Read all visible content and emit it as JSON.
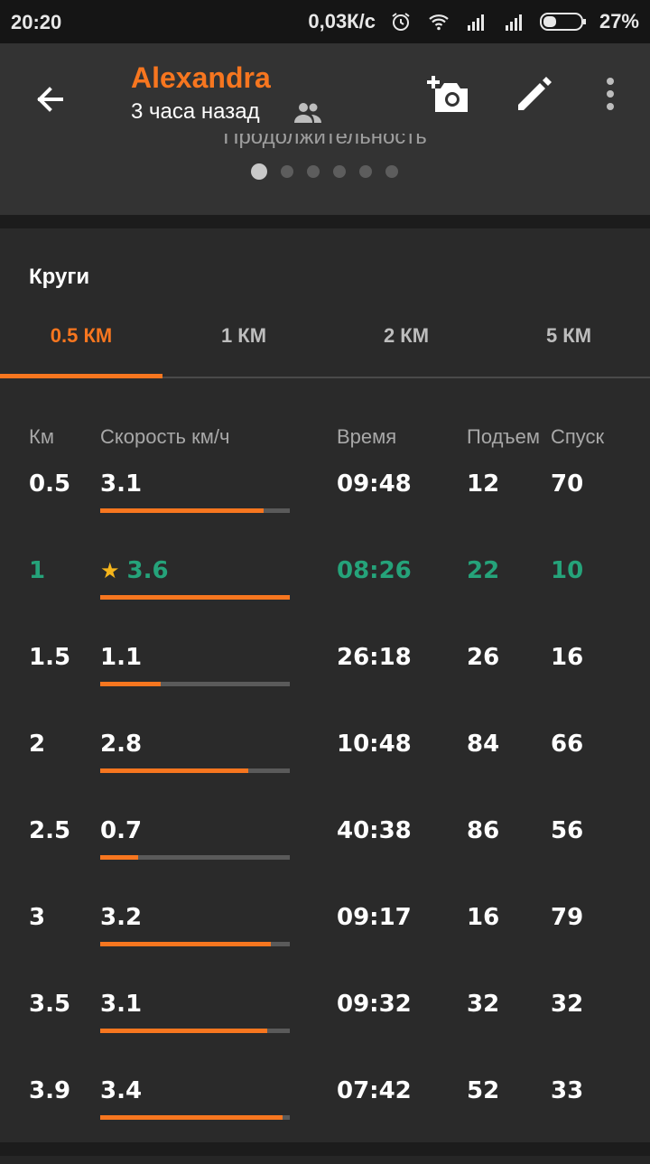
{
  "status_bar": {
    "time": "20:20",
    "speed": "0,03К/с",
    "battery": "27%",
    "icons": [
      "alarm-icon",
      "wifi-icon",
      "signal-icon",
      "signal-icon",
      "battery-icon"
    ]
  },
  "header": {
    "name": "Alexandra",
    "subtitle": "3 часа назад",
    "clipped_label": "Продолжительность",
    "carousel_dots": 6,
    "carousel_active": 0
  },
  "laps": {
    "title": "Круги",
    "tabs": [
      {
        "label": "0.5 КМ",
        "active": true
      },
      {
        "label": "1 КМ",
        "active": false
      },
      {
        "label": "2 КМ",
        "active": false
      },
      {
        "label": "5 КМ",
        "active": false
      }
    ],
    "columns": {
      "km": "Км",
      "speed": "Скорость км/ч",
      "time": "Время",
      "ascent": "Подъем",
      "descent": "Спуск"
    },
    "rows": [
      {
        "km": "0.5",
        "speed": "3.1",
        "time": "09:48",
        "ascent": "12",
        "descent": "70",
        "bar_fraction": 0.86,
        "best": false
      },
      {
        "km": "1",
        "speed": "3.6",
        "time": "08:26",
        "ascent": "22",
        "descent": "10",
        "bar_fraction": 1.0,
        "best": true
      },
      {
        "km": "1.5",
        "speed": "1.1",
        "time": "26:18",
        "ascent": "26",
        "descent": "16",
        "bar_fraction": 0.32,
        "best": false
      },
      {
        "km": "2",
        "speed": "2.8",
        "time": "10:48",
        "ascent": "84",
        "descent": "66",
        "bar_fraction": 0.78,
        "best": false
      },
      {
        "km": "2.5",
        "speed": "0.7",
        "time": "40:38",
        "ascent": "86",
        "descent": "56",
        "bar_fraction": 0.2,
        "best": false
      },
      {
        "km": "3",
        "speed": "3.2",
        "time": "09:17",
        "ascent": "16",
        "descent": "79",
        "bar_fraction": 0.9,
        "best": false
      },
      {
        "km": "3.5",
        "speed": "3.1",
        "time": "09:32",
        "ascent": "32",
        "descent": "32",
        "bar_fraction": 0.88,
        "best": false
      },
      {
        "km": "3.9",
        "speed": "3.4",
        "time": "07:42",
        "ascent": "52",
        "descent": "33",
        "bar_fraction": 0.96,
        "best": false
      }
    ]
  },
  "colors": {
    "accent": "#f7761f",
    "best": "#25a37a",
    "star": "#f5b51b"
  }
}
